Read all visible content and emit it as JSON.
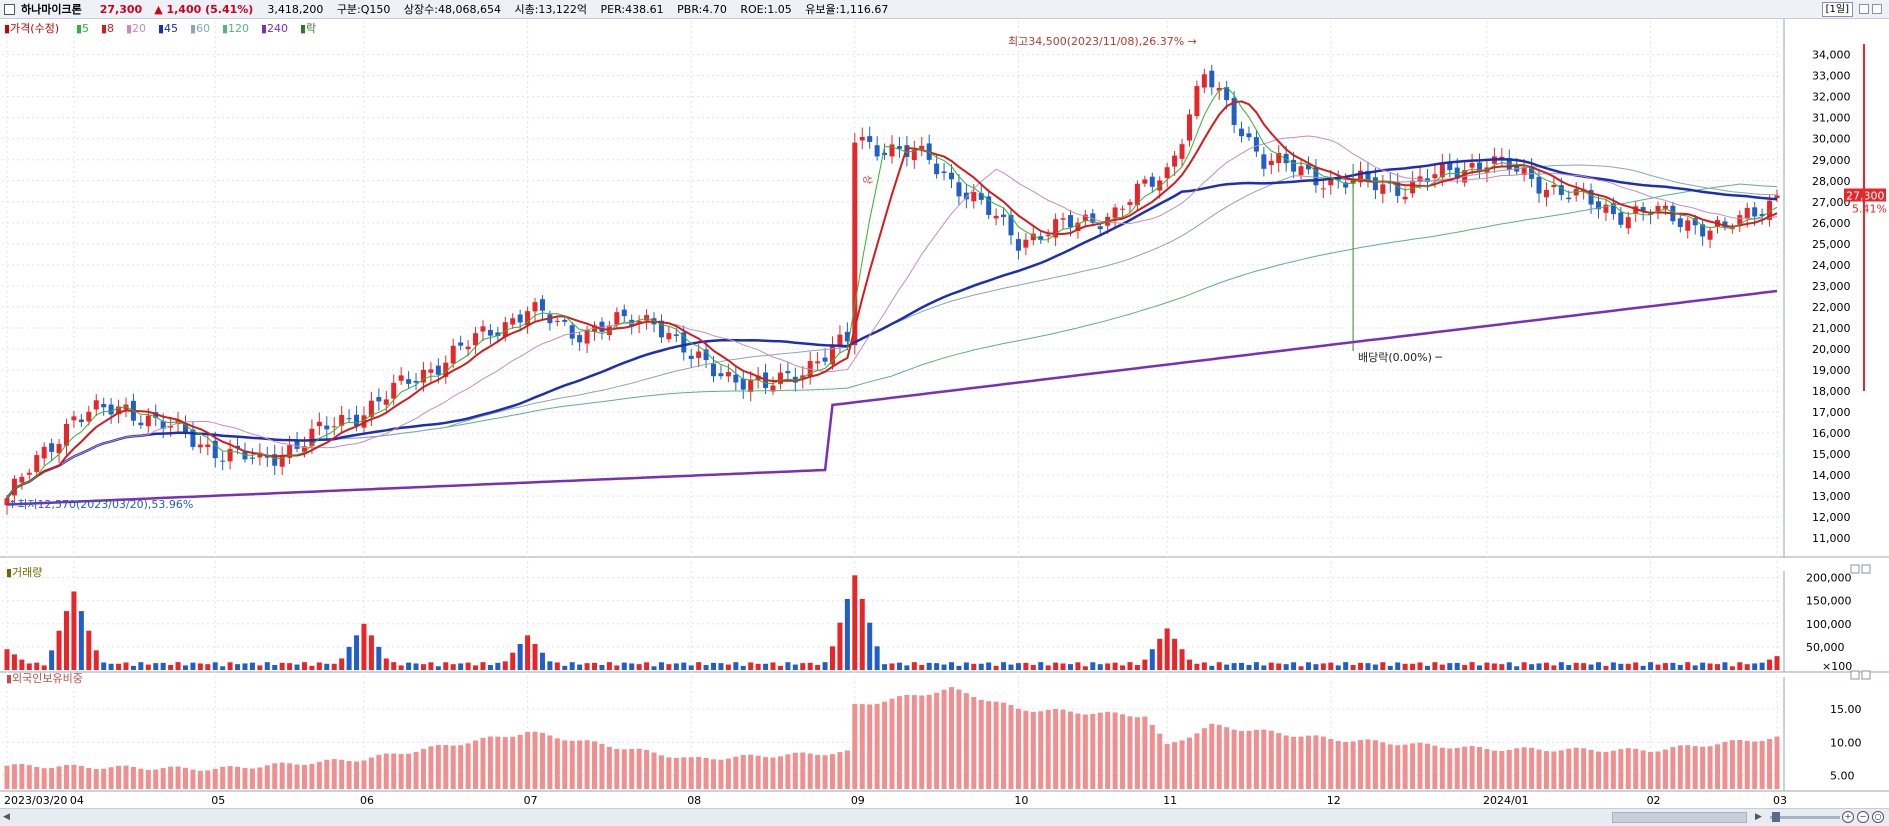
{
  "header": {
    "stock_name": "하나마이크론",
    "price": "27,300",
    "change": "▲ 1,400  (5.41%)",
    "volume": "3,418,200",
    "market": "구분:Q150",
    "shares": "상장수:48,068,654",
    "mcap": "시총:13,122억",
    "per": "PER:438.61",
    "pbr": "PBR:4.70",
    "roe": "ROE:1.05",
    "reserve": "유보율:1,116.67",
    "period": "[1일]"
  },
  "legend": {
    "price": "가격(수정)",
    "ma_labels": [
      "5",
      "8",
      "20",
      "45",
      "60",
      "120",
      "240"
    ],
    "rights": "락"
  },
  "colors": {
    "up": "#e8262a",
    "down": "#1f5fc7",
    "ma5": "#2fb52f",
    "ma8": "#d61b1b",
    "ma20": "#c78bc4",
    "ma45": "#1b2fb5",
    "ma60": "#8ea5b6",
    "ma120": "#59b287",
    "ma240": "#7a2fb8",
    "foreign": "#f08f8f"
  },
  "annotations": {
    "high": "최고34,500(2023/11/08),26.37%",
    "low": "최저12,570(2023/03/20),53.96%",
    "dividend": "배당락(0.00%)",
    "ceiling_mark": "상",
    "price_tag": "27,300",
    "pct_tag": "5.41%"
  },
  "panels": {
    "volume_title": "거래량",
    "foreign_title": "외국인보유비중"
  },
  "icons": [
    "checkbox-icon",
    "panel-minimize-icon",
    "panel-close-icon",
    "scroll-left-icon",
    "scroll-right-icon",
    "zoom-in-icon",
    "zoom-out-icon",
    "zoom-reset-icon"
  ],
  "chart_data": [
    {
      "type": "candlestick",
      "title": "하나마이크론",
      "y_axis_ticks": [
        "11,000",
        "12,000",
        "13,000",
        "14,000",
        "15,000",
        "16,000",
        "17,000",
        "18,000",
        "19,000",
        "20,000",
        "21,000",
        "22,000",
        "23,000",
        "24,000",
        "25,000",
        "26,000",
        "27,000",
        "28,000",
        "29,000",
        "30,000",
        "31,000",
        "32,000",
        "33,000",
        "34,000"
      ],
      "ylim": [
        10200,
        35600
      ],
      "x_labels": [
        "2023/03/20",
        "04",
        "05",
        "06",
        "07",
        "08",
        "09",
        "10",
        "11",
        "12",
        "2024/01",
        "02",
        "03"
      ],
      "keypoints": [
        {
          "x": "2023/03/20",
          "close": 12900
        },
        {
          "x": "04",
          "close": 16800
        },
        {
          "x": "04/11",
          "close": 17200
        },
        {
          "x": "05",
          "close": 15200
        },
        {
          "x": "05/10",
          "close": 14600
        },
        {
          "x": "06",
          "close": 17100
        },
        {
          "x": "06/20",
          "close": 20000
        },
        {
          "x": "07",
          "close": 21900
        },
        {
          "x": "07/10",
          "close": 20800
        },
        {
          "x": "07/25",
          "close": 21500
        },
        {
          "x": "08",
          "close": 19500
        },
        {
          "x": "08/15",
          "close": 18100
        },
        {
          "x": "08/31",
          "close": 20300
        },
        {
          "x": "09",
          "close": 30000
        },
        {
          "x": "09/15",
          "close": 29000
        },
        {
          "x": "10",
          "close": 25200
        },
        {
          "x": "10/20",
          "close": 26500
        },
        {
          "x": "11",
          "close": 28500
        },
        {
          "x": "11/08",
          "close": 33000
        },
        {
          "x": "11/20",
          "close": 29000
        },
        {
          "x": "12",
          "close": 28000
        },
        {
          "x": "12/15",
          "close": 27700
        },
        {
          "x": "2024/01",
          "close": 29000
        },
        {
          "x": "01/15",
          "close": 27500
        },
        {
          "x": "01/25",
          "close": 26500
        },
        {
          "x": "02",
          "close": 26500
        },
        {
          "x": "02/15",
          "close": 25600
        },
        {
          "x": "03",
          "close": 27300
        }
      ],
      "high": 34500,
      "low": 12570,
      "last_close": 27300,
      "moving_averages": [
        "5",
        "8",
        "20",
        "45",
        "60",
        "120",
        "240"
      ]
    },
    {
      "type": "bar",
      "title": "거래량",
      "y_axis_ticks": [
        "200,000",
        "150,000",
        "100,000",
        "50,000"
      ],
      "unit": "×100",
      "ylim": [
        0,
        210000
      ],
      "peak_values": [
        {
          "x": "2023/03/20",
          "value": 45000
        },
        {
          "x": "04",
          "value": 170000
        },
        {
          "x": "06",
          "value": 100000
        },
        {
          "x": "07",
          "value": 75000
        },
        {
          "x": "09",
          "value": 205000
        },
        {
          "x": "11",
          "value": 90000
        },
        {
          "x": "03",
          "value": 30000
        }
      ]
    },
    {
      "type": "bar",
      "title": "외국인보유비중",
      "y_axis_ticks": [
        "15.00",
        "10.00",
        "5.00"
      ],
      "ylim": [
        3,
        19.5
      ],
      "keypoints": [
        {
          "x": "2023/03/20",
          "value": 6.5
        },
        {
          "x": "05",
          "value": 6.0
        },
        {
          "x": "06",
          "value": 7.5
        },
        {
          "x": "07",
          "value": 11.5
        },
        {
          "x": "08",
          "value": 7.5
        },
        {
          "x": "08/31",
          "value": 8.5
        },
        {
          "x": "09",
          "value": 15.5
        },
        {
          "x": "09/20",
          "value": 18.0
        },
        {
          "x": "10",
          "value": 15.0
        },
        {
          "x": "10/25",
          "value": 14.0
        },
        {
          "x": "11",
          "value": 9.5
        },
        {
          "x": "11/10",
          "value": 12.5
        },
        {
          "x": "12",
          "value": 10.5
        },
        {
          "x": "2024/01",
          "value": 9.0
        },
        {
          "x": "02",
          "value": 8.8
        },
        {
          "x": "03",
          "value": 10.7
        }
      ]
    }
  ]
}
